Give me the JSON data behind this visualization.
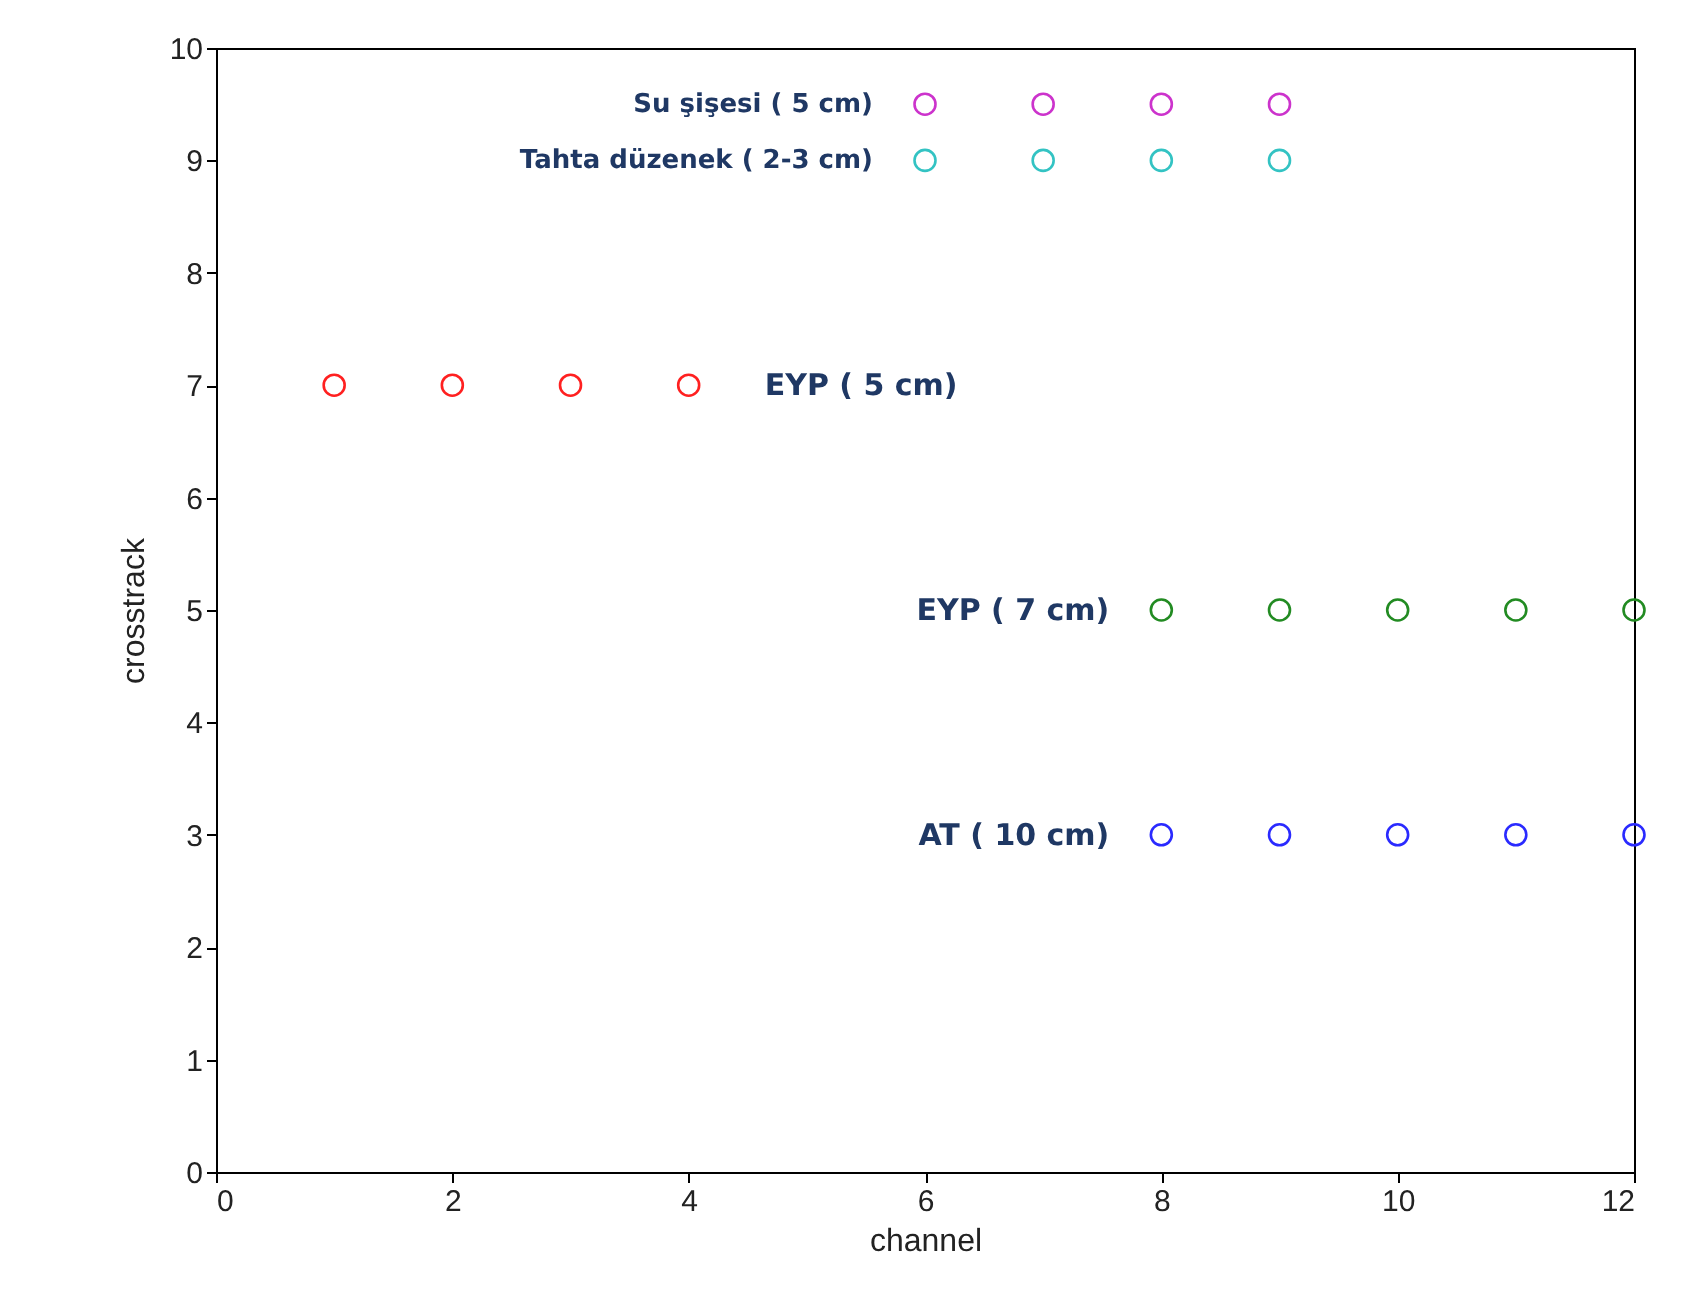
{
  "chart_data": {
    "type": "scatter",
    "xlabel": "channel",
    "ylabel": "crosstrack",
    "xlim": [
      0,
      12
    ],
    "ylim": [
      0,
      10
    ],
    "xticks": [
      0,
      2,
      4,
      6,
      8,
      10,
      12
    ],
    "yticks": [
      0,
      1,
      2,
      3,
      4,
      5,
      6,
      7,
      8,
      9,
      10
    ],
    "marker": "circle",
    "grid": false,
    "series": [
      {
        "name": "Su şişesi ( 5 cm)",
        "color": "#cc33cc",
        "x": [
          6,
          7,
          8,
          9
        ],
        "values": [
          9.5,
          9.5,
          9.5,
          9.5
        ]
      },
      {
        "name": "Tahta  düzenek ( 2-3 cm)",
        "color": "#33c3c3",
        "x": [
          6,
          7,
          8,
          9
        ],
        "values": [
          9,
          9,
          9,
          9
        ]
      },
      {
        "name": "EYP ( 5 cm)",
        "color": "#ff2020",
        "x": [
          1,
          2,
          3,
          4
        ],
        "values": [
          7,
          7,
          7,
          7
        ]
      },
      {
        "name": "EYP ( 7 cm)",
        "color": "#228b22",
        "x": [
          8,
          9,
          10,
          11,
          12
        ],
        "values": [
          5,
          5,
          5,
          5,
          5
        ]
      },
      {
        "name": "AT ( 10 cm)",
        "color": "#2a2aff",
        "x": [
          8,
          9,
          10,
          11,
          12
        ],
        "values": [
          3,
          3,
          3,
          3,
          3
        ]
      }
    ]
  }
}
